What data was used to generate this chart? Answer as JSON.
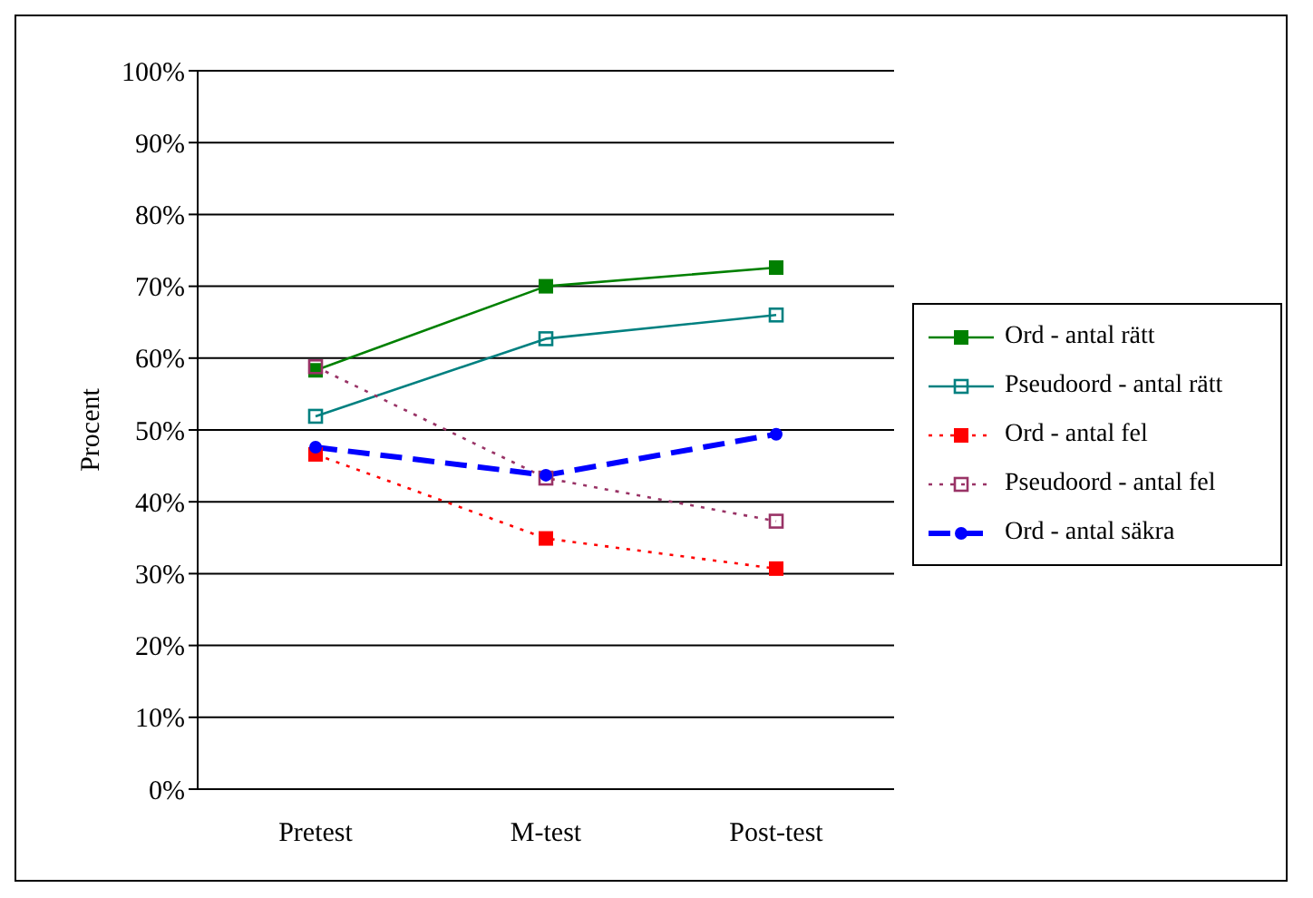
{
  "chart_data": {
    "type": "line",
    "ylabel": "Procent",
    "categories": [
      "Pretest",
      "M-test",
      "Post-test"
    ],
    "series": [
      {
        "name": "Ord - antal rätt",
        "color": "#008000",
        "values": [
          58.3,
          70,
          72.6
        ],
        "marker": "square",
        "line_style": "solid"
      },
      {
        "name": "Pseudoord - antal rätt",
        "color": "#008080",
        "values": [
          51.9,
          62.7,
          66
        ],
        "marker": "square_open",
        "line_style": "solid"
      },
      {
        "name": "Ord - antal fel",
        "color": "#ff0000",
        "values": [
          46.6,
          34.9,
          30.7
        ],
        "marker": "square",
        "line_style": "dotted"
      },
      {
        "name": "Pseudoord - antal fel",
        "color": "#993366",
        "values": [
          58.8,
          43.3,
          37.3
        ],
        "marker": "square_open",
        "line_style": "dotted"
      },
      {
        "name": "Ord - antal säkra",
        "color": "#0000ff",
        "values": [
          47.6,
          43.7,
          49.4
        ],
        "marker": "circle",
        "line_style": "dashed"
      }
    ],
    "ylim": [
      0,
      100
    ],
    "yticks": [
      {
        "value": 0,
        "label": "0%"
      },
      {
        "value": 10,
        "label": "10%"
      },
      {
        "value": 20,
        "label": "20%"
      },
      {
        "value": 30,
        "label": "30%"
      },
      {
        "value": 40,
        "label": "40%"
      },
      {
        "value": 50,
        "label": "50%"
      },
      {
        "value": 60,
        "label": "60%"
      },
      {
        "value": 70,
        "label": "70%"
      },
      {
        "value": 80,
        "label": "80%"
      },
      {
        "value": 90,
        "label": "90%"
      },
      {
        "value": 100,
        "label": "100%"
      }
    ],
    "grid": "y",
    "legend": "right"
  }
}
